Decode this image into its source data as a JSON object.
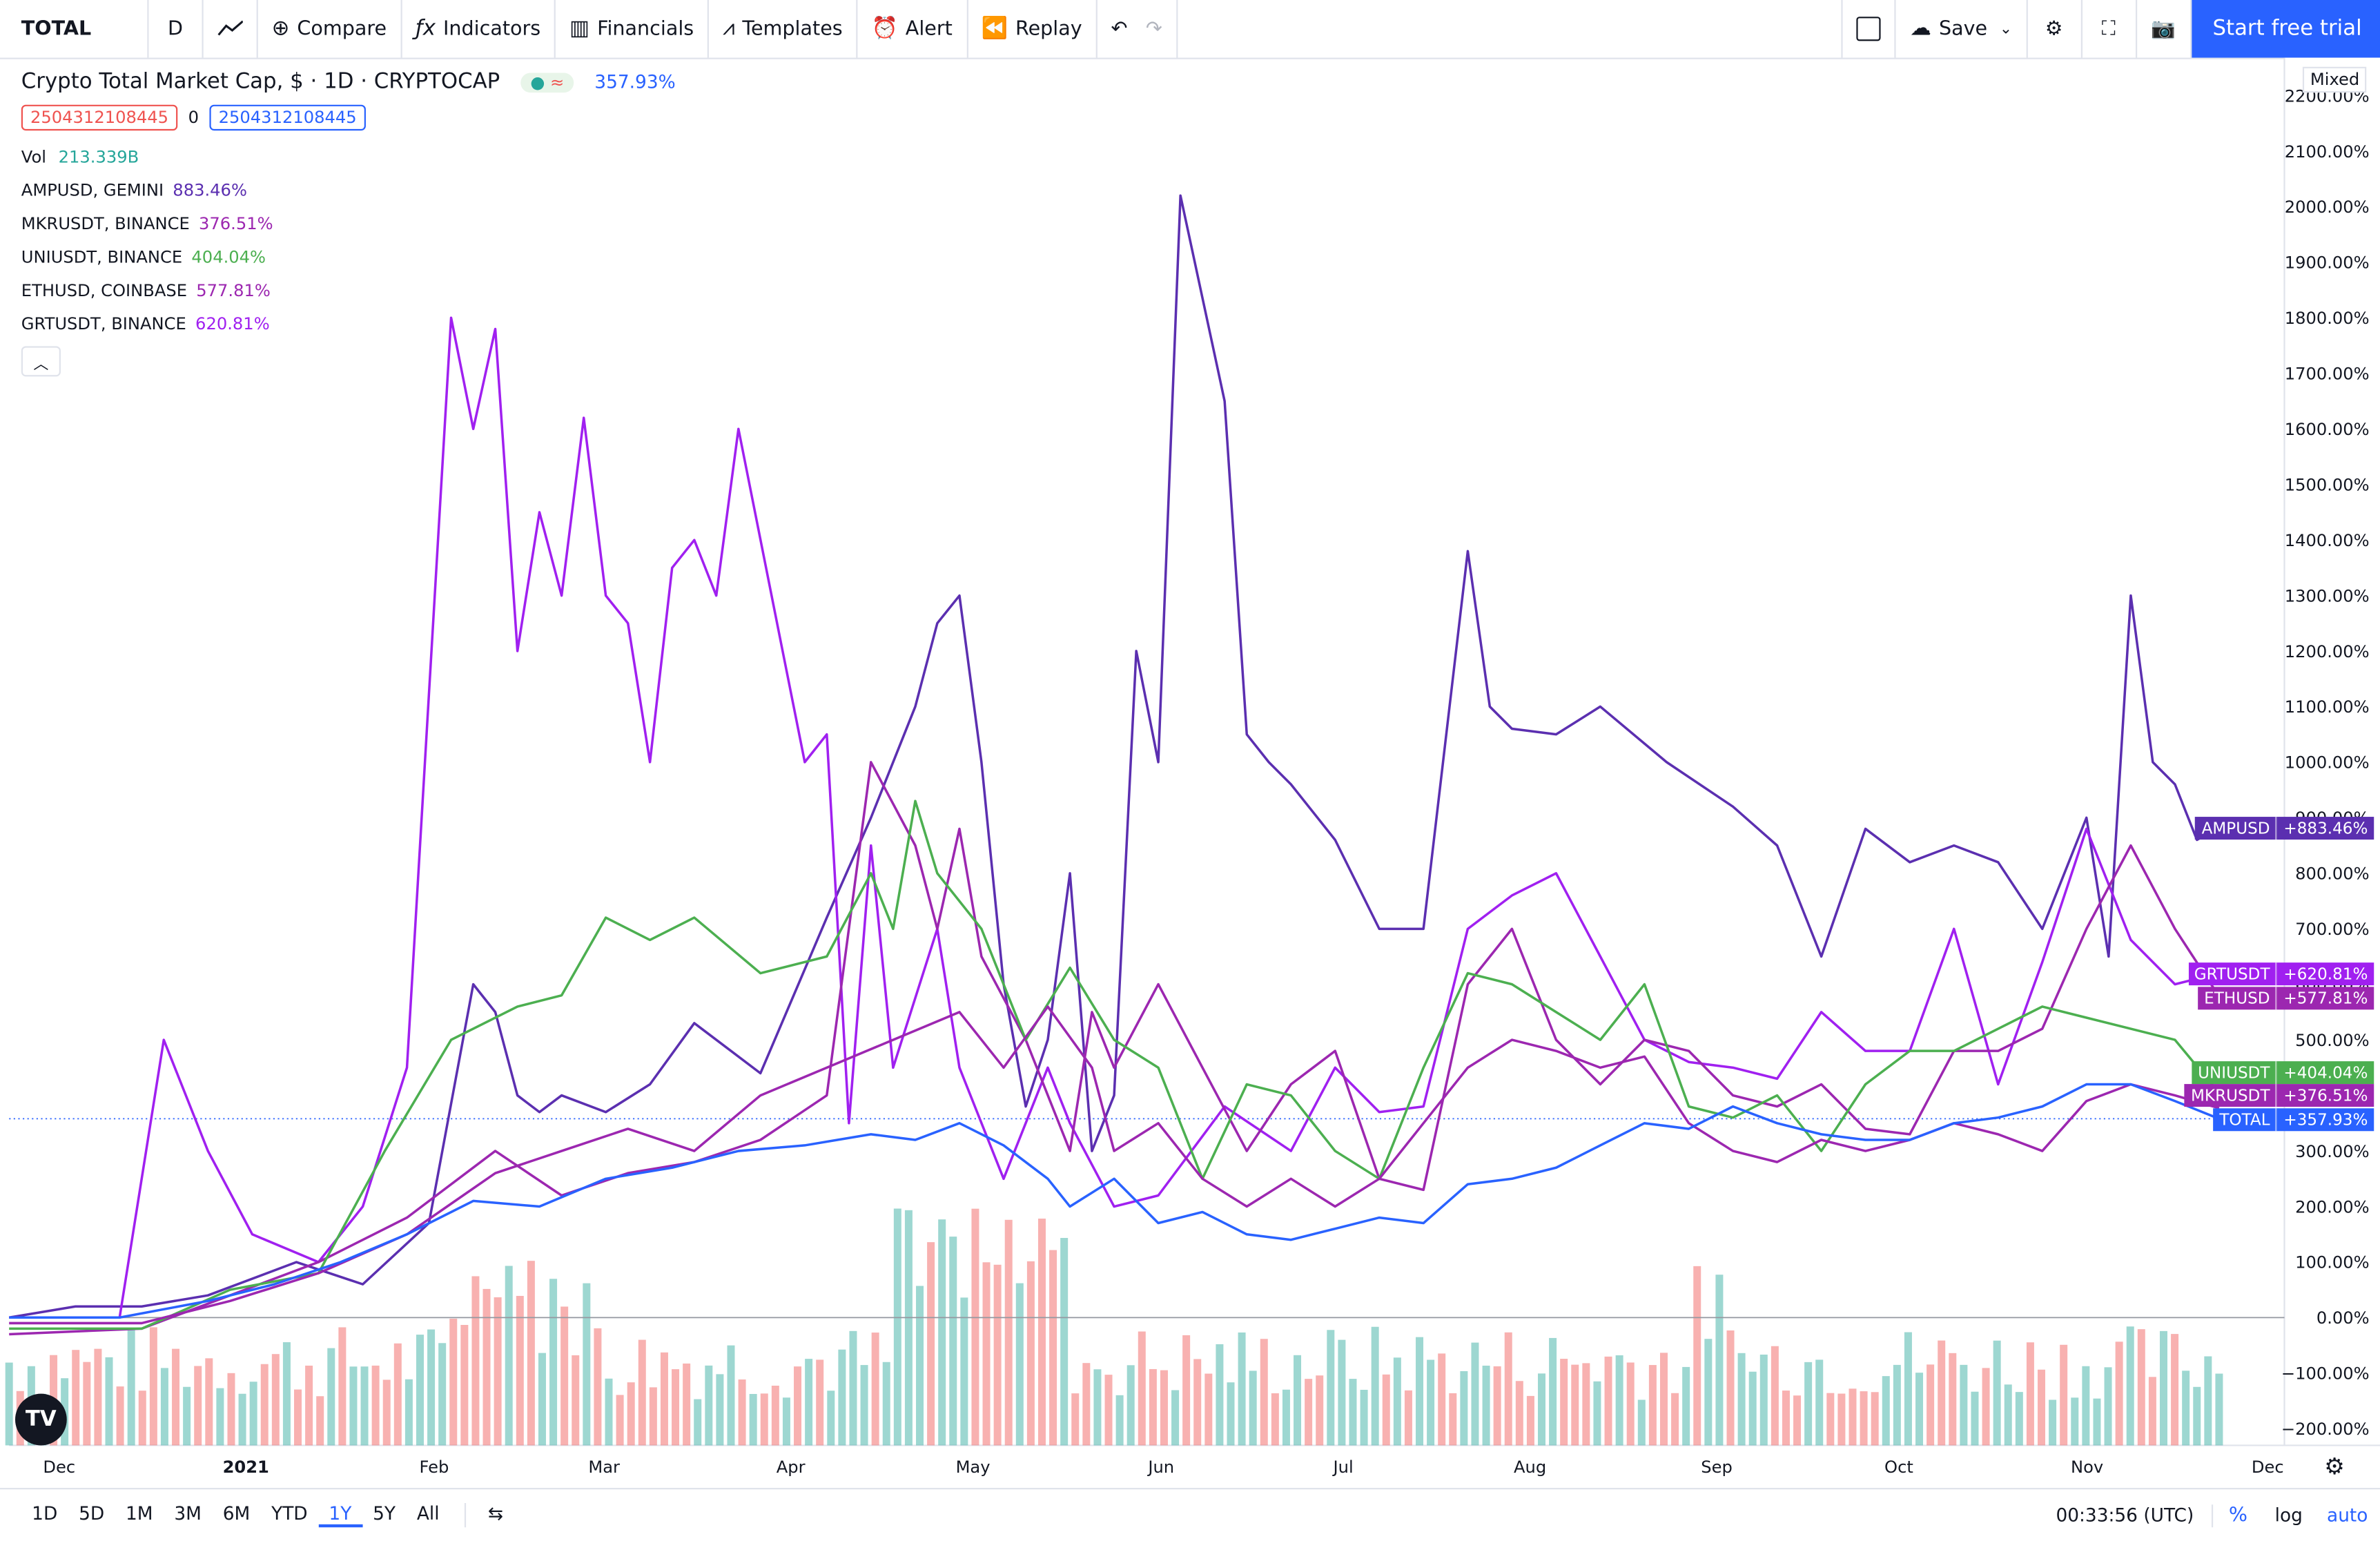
{
  "toolbar": {
    "symbol": "TOTAL",
    "interval": "D",
    "compare": "Compare",
    "indicators": "Indicators",
    "financials": "Financials",
    "templates": "Templates",
    "alert": "Alert",
    "replay": "Replay",
    "save": "Save",
    "trial": "Start free trial"
  },
  "legend": {
    "title": "Crypto Total Market Cap, $ · 1D · CRYPTOCAP",
    "main_value": "357.93%",
    "box1": "2504312108445",
    "box_mid": "0",
    "box2": "2504312108445",
    "vol_label": "Vol",
    "vol_value": "213.339B",
    "rows": [
      {
        "name": "AMPUSD, GEMINI",
        "value": "883.46%",
        "color": "#5b2fb0"
      },
      {
        "name": "MKRUSDT, BINANCE",
        "value": "376.51%",
        "color": "#9c27b0"
      },
      {
        "name": "UNIUSDT, BINANCE",
        "value": "404.04%",
        "color": "#4caf50"
      },
      {
        "name": "ETHUSD, COINBASE",
        "value": "577.81%",
        "color": "#9c27b0"
      },
      {
        "name": "GRTUSDT, BINANCE",
        "value": "620.81%",
        "color": "#a020f0"
      }
    ]
  },
  "chart_data": {
    "type": "line",
    "scale": "percent",
    "x_labels": [
      "Dec",
      "2021",
      "Feb",
      "Mar",
      "Apr",
      "May",
      "Jun",
      "Jul",
      "Aug",
      "Sep",
      "Oct",
      "Nov",
      "Dec"
    ],
    "y_ticks": [
      "2200.00%",
      "2100.00%",
      "2000.00%",
      "1900.00%",
      "1800.00%",
      "1700.00%",
      "1600.00%",
      "1500.00%",
      "1400.00%",
      "1300.00%",
      "1200.00%",
      "1100.00%",
      "1000.00%",
      "900.00%",
      "800.00%",
      "700.00%",
      "600.00%",
      "500.00%",
      "400.00%",
      "300.00%",
      "200.00%",
      "100.00%",
      "0.00%",
      "−100.00%",
      "−200.00%"
    ],
    "ylim": [
      -200,
      2200
    ],
    "series": [
      {
        "name": "AMPUSD",
        "color": "#5b2fb0",
        "last": "+883.46%",
        "x": [
          0,
          0.03,
          0.06,
          0.09,
          0.13,
          0.16,
          0.19,
          0.21,
          0.22,
          0.23,
          0.24,
          0.25,
          0.27,
          0.29,
          0.31,
          0.34,
          0.37,
          0.39,
          0.41,
          0.42,
          0.43,
          0.44,
          0.45,
          0.46,
          0.47,
          0.48,
          0.49,
          0.5,
          0.51,
          0.52,
          0.53,
          0.55,
          0.56,
          0.57,
          0.58,
          0.6,
          0.62,
          0.64,
          0.66,
          0.67,
          0.68,
          0.7,
          0.72,
          0.75,
          0.78,
          0.8,
          0.82,
          0.84,
          0.86,
          0.88,
          0.9,
          0.92,
          0.94,
          0.95,
          0.96,
          0.97,
          0.98,
          0.99,
          1.0
        ],
        "y": [
          0,
          20,
          20,
          40,
          100,
          60,
          170,
          600,
          550,
          400,
          370,
          400,
          370,
          420,
          530,
          440,
          720,
          900,
          1100,
          1250,
          1300,
          1000,
          600,
          380,
          500,
          800,
          300,
          400,
          1200,
          1000,
          2020,
          1650,
          1050,
          1000,
          960,
          860,
          700,
          700,
          1380,
          1100,
          1060,
          1050,
          1100,
          1000,
          920,
          850,
          650,
          880,
          820,
          850,
          820,
          700,
          900,
          650,
          1300,
          1000,
          960,
          860,
          883
        ]
      },
      {
        "name": "GRTUSDT",
        "color": "#a020f0",
        "last": "+620.81%",
        "x": [
          0,
          0.05,
          0.07,
          0.09,
          0.11,
          0.14,
          0.16,
          0.18,
          0.2,
          0.21,
          0.22,
          0.23,
          0.24,
          0.25,
          0.26,
          0.27,
          0.28,
          0.29,
          0.3,
          0.31,
          0.32,
          0.33,
          0.35,
          0.36,
          0.37,
          0.38,
          0.39,
          0.4,
          0.42,
          0.43,
          0.45,
          0.47,
          0.48,
          0.5,
          0.52,
          0.55,
          0.58,
          0.6,
          0.62,
          0.64,
          0.66,
          0.68,
          0.7,
          0.72,
          0.74,
          0.76,
          0.78,
          0.8,
          0.82,
          0.84,
          0.86,
          0.88,
          0.9,
          0.92,
          0.94,
          0.96,
          0.98,
          1.0
        ],
        "y": [
          0,
          0,
          500,
          300,
          150,
          100,
          200,
          450,
          1800,
          1600,
          1780,
          1200,
          1450,
          1300,
          1620,
          1300,
          1250,
          1000,
          1350,
          1400,
          1300,
          1600,
          1200,
          1000,
          1050,
          350,
          850,
          450,
          700,
          450,
          250,
          450,
          350,
          200,
          220,
          380,
          300,
          450,
          370,
          380,
          700,
          760,
          800,
          650,
          500,
          460,
          450,
          430,
          550,
          480,
          480,
          700,
          420,
          640,
          880,
          680,
          600,
          620
        ]
      },
      {
        "name": "ETHUSD",
        "color": "#9c27b0",
        "last": "+577.81%",
        "x": [
          0,
          0.06,
          0.1,
          0.14,
          0.18,
          0.22,
          0.25,
          0.28,
          0.31,
          0.34,
          0.37,
          0.39,
          0.41,
          0.42,
          0.43,
          0.44,
          0.46,
          0.48,
          0.49,
          0.5,
          0.52,
          0.54,
          0.56,
          0.58,
          0.6,
          0.62,
          0.64,
          0.66,
          0.68,
          0.7,
          0.72,
          0.74,
          0.76,
          0.78,
          0.8,
          0.82,
          0.84,
          0.86,
          0.88,
          0.9,
          0.92,
          0.94,
          0.96,
          0.98,
          1.0
        ],
        "y": [
          -30,
          -20,
          40,
          100,
          180,
          300,
          220,
          260,
          280,
          320,
          400,
          1000,
          850,
          700,
          880,
          650,
          500,
          300,
          550,
          450,
          600,
          450,
          300,
          420,
          480,
          250,
          230,
          600,
          700,
          500,
          420,
          500,
          480,
          400,
          380,
          420,
          340,
          330,
          480,
          480,
          520,
          700,
          850,
          700,
          578
        ]
      },
      {
        "name": "UNIUSDT",
        "color": "#4caf50",
        "last": "+404.04%",
        "x": [
          0,
          0.06,
          0.1,
          0.14,
          0.17,
          0.2,
          0.23,
          0.25,
          0.27,
          0.29,
          0.31,
          0.34,
          0.37,
          0.39,
          0.4,
          0.41,
          0.42,
          0.44,
          0.46,
          0.48,
          0.5,
          0.52,
          0.54,
          0.56,
          0.58,
          0.6,
          0.62,
          0.64,
          0.66,
          0.68,
          0.7,
          0.72,
          0.74,
          0.76,
          0.78,
          0.8,
          0.82,
          0.84,
          0.86,
          0.88,
          0.9,
          0.92,
          0.94,
          0.96,
          0.98,
          1.0
        ],
        "y": [
          -20,
          -20,
          50,
          80,
          300,
          500,
          560,
          580,
          720,
          680,
          720,
          620,
          650,
          800,
          700,
          930,
          800,
          700,
          500,
          630,
          500,
          450,
          250,
          420,
          400,
          300,
          250,
          450,
          620,
          600,
          550,
          500,
          600,
          380,
          360,
          400,
          300,
          420,
          480,
          480,
          520,
          560,
          540,
          520,
          500,
          404
        ]
      },
      {
        "name": "MKRUSDT",
        "color": "#9c27b0",
        "last": "+376.51%",
        "x": [
          0,
          0.06,
          0.1,
          0.14,
          0.18,
          0.22,
          0.25,
          0.28,
          0.31,
          0.34,
          0.37,
          0.4,
          0.43,
          0.45,
          0.47,
          0.49,
          0.5,
          0.52,
          0.54,
          0.56,
          0.58,
          0.6,
          0.62,
          0.64,
          0.66,
          0.68,
          0.7,
          0.72,
          0.74,
          0.76,
          0.78,
          0.8,
          0.82,
          0.84,
          0.86,
          0.88,
          0.9,
          0.92,
          0.94,
          0.96,
          0.98,
          1.0
        ],
        "y": [
          -10,
          -10,
          30,
          80,
          150,
          260,
          300,
          340,
          300,
          400,
          450,
          500,
          550,
          450,
          560,
          450,
          300,
          350,
          250,
          200,
          250,
          200,
          250,
          350,
          450,
          500,
          480,
          450,
          470,
          350,
          300,
          280,
          320,
          300,
          320,
          350,
          330,
          300,
          390,
          420,
          400,
          377
        ]
      },
      {
        "name": "TOTAL",
        "color": "#2962ff",
        "last": "+357.93%",
        "x": [
          0,
          0.05,
          0.09,
          0.12,
          0.15,
          0.18,
          0.21,
          0.24,
          0.27,
          0.3,
          0.33,
          0.36,
          0.39,
          0.41,
          0.43,
          0.45,
          0.47,
          0.48,
          0.5,
          0.52,
          0.54,
          0.56,
          0.58,
          0.6,
          0.62,
          0.64,
          0.66,
          0.68,
          0.7,
          0.72,
          0.74,
          0.76,
          0.78,
          0.8,
          0.82,
          0.84,
          0.86,
          0.88,
          0.9,
          0.92,
          0.94,
          0.96,
          0.98,
          1.0
        ],
        "y": [
          0,
          0,
          30,
          60,
          100,
          150,
          210,
          200,
          250,
          270,
          300,
          310,
          330,
          320,
          350,
          310,
          250,
          200,
          250,
          170,
          190,
          150,
          140,
          160,
          180,
          170,
          240,
          250,
          270,
          310,
          350,
          340,
          380,
          350,
          330,
          320,
          320,
          350,
          360,
          380,
          420,
          420,
          390,
          358
        ]
      }
    ],
    "volume_bars": 200
  },
  "price_tags": [
    {
      "name": "AMPUSD",
      "value": "+883.46%",
      "color": "#5b2fb0"
    },
    {
      "name": "GRTUSDT",
      "value": "+620.81%",
      "color": "#a020f0"
    },
    {
      "name": "ETHUSD",
      "value": "+577.81%",
      "color": "#9c27b0"
    },
    {
      "name": "UNIUSDT",
      "value": "+404.04%",
      "color": "#4caf50"
    },
    {
      "name": "MKRUSDT",
      "value": "+376.51%",
      "color": "#9c27b0"
    },
    {
      "name": "TOTAL",
      "value": "+357.93%",
      "color": "#2962ff"
    }
  ],
  "mixed": "Mixed",
  "bottom": {
    "ranges": [
      "1D",
      "5D",
      "1M",
      "3M",
      "6M",
      "YTD",
      "1Y",
      "5Y",
      "All"
    ],
    "active": "1Y",
    "clock": "00:33:56 (UTC)",
    "pct": "%",
    "log": "log",
    "auto": "auto"
  }
}
